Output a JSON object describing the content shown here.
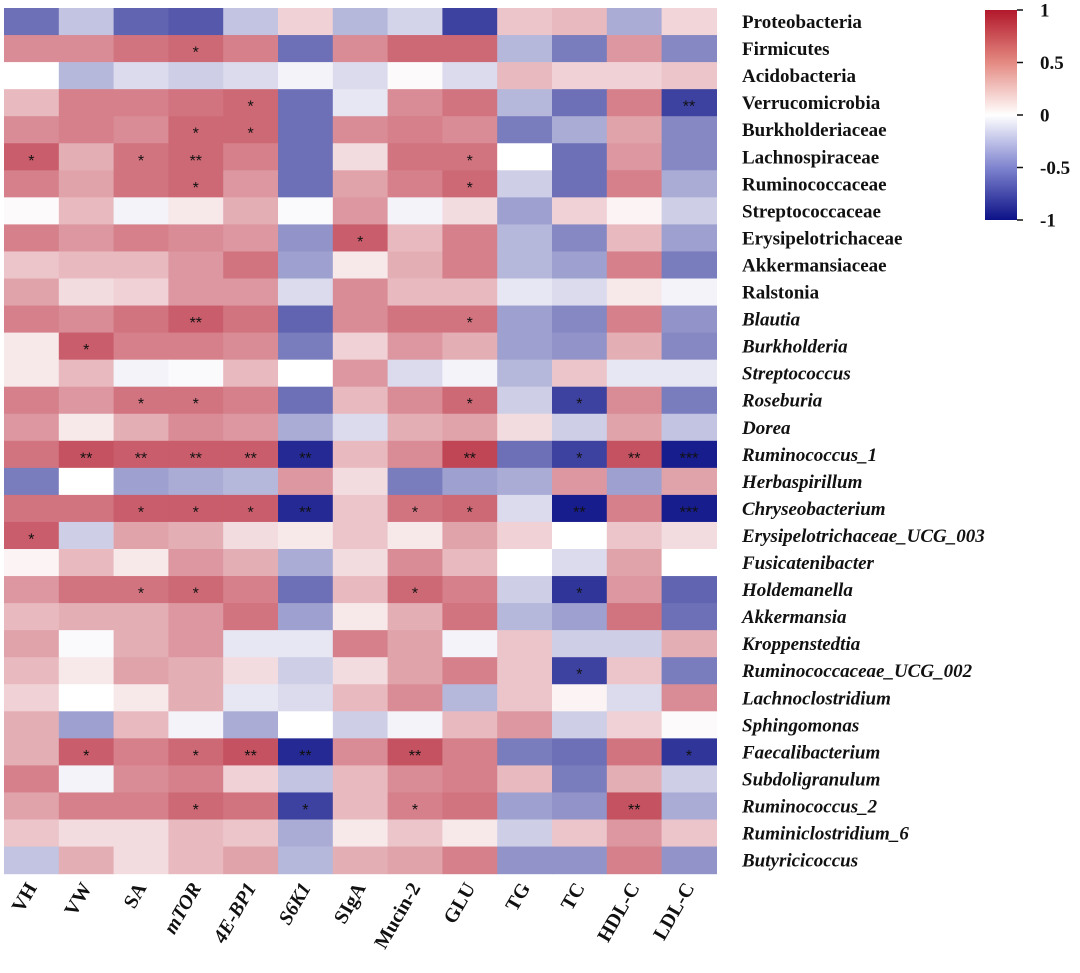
{
  "chart_data": {
    "type": "heatmap",
    "title": "",
    "columns": [
      {
        "label": "VH",
        "italic": false
      },
      {
        "label": "VW",
        "italic": false
      },
      {
        "label": "SA",
        "italic": false
      },
      {
        "label": "mTOR",
        "italic": true
      },
      {
        "label": "4E-BP1",
        "italic": true
      },
      {
        "label": "S6K1",
        "italic": true
      },
      {
        "label": "SIgA",
        "italic": false
      },
      {
        "label": "Mucin-2",
        "italic": false
      },
      {
        "label": "GLU",
        "italic": false
      },
      {
        "label": "TG",
        "italic": false
      },
      {
        "label": "TC",
        "italic": false
      },
      {
        "label": "HDL-C",
        "italic": false
      },
      {
        "label": "LDL-C",
        "italic": false
      }
    ],
    "rows": [
      {
        "label": "Proteobacteria",
        "italic": false,
        "values": [
          -0.6,
          -0.25,
          -0.65,
          -0.7,
          -0.25,
          0.2,
          -0.3,
          -0.18,
          -0.8,
          0.25,
          0.3,
          -0.35,
          0.18
        ],
        "stars": [
          "",
          "",
          "",
          "",
          "",
          "",
          "",
          "",
          "",
          "",
          "",
          "",
          ""
        ]
      },
      {
        "label": "Firmicutes",
        "italic": false,
        "values": [
          0.5,
          0.5,
          0.6,
          0.65,
          0.55,
          -0.6,
          0.5,
          0.65,
          0.65,
          -0.3,
          -0.55,
          0.45,
          -0.5
        ],
        "stars": [
          "",
          "",
          "",
          "*",
          "",
          "",
          "",
          "",
          "",
          "",
          "",
          "",
          ""
        ]
      },
      {
        "label": "Acidobacteria",
        "italic": false,
        "values": [
          0.0,
          -0.3,
          -0.15,
          -0.2,
          -0.15,
          -0.05,
          -0.15,
          0.02,
          -0.15,
          0.3,
          0.2,
          0.2,
          0.25
        ],
        "stars": [
          "",
          "",
          "",
          "",
          "",
          "",
          "",
          "",
          "",
          "",
          "",
          "",
          ""
        ]
      },
      {
        "label": "Verrucomicrobia",
        "italic": false,
        "values": [
          0.3,
          0.55,
          0.55,
          0.6,
          0.65,
          -0.6,
          -0.1,
          0.5,
          0.6,
          -0.3,
          -0.6,
          0.55,
          -0.8
        ],
        "stars": [
          "",
          "",
          "",
          "",
          "*",
          "",
          "",
          "",
          "",
          "",
          "",
          "",
          "**"
        ]
      },
      {
        "label": "Burkholderiaceae",
        "italic": false,
        "values": [
          0.5,
          0.55,
          0.5,
          0.65,
          0.65,
          -0.6,
          0.5,
          0.55,
          0.5,
          -0.55,
          -0.35,
          0.4,
          -0.5
        ],
        "stars": [
          "",
          "",
          "",
          "*",
          "*",
          "",
          "",
          "",
          "",
          "",
          "",
          "",
          ""
        ]
      },
      {
        "label": "Lachnospiraceae",
        "italic": false,
        "values": [
          0.7,
          0.35,
          0.6,
          0.65,
          0.55,
          -0.6,
          0.15,
          0.6,
          0.6,
          0.0,
          -0.6,
          0.45,
          -0.5
        ],
        "stars": [
          "*",
          "",
          "*",
          "**",
          "",
          "",
          "",
          "",
          "*",
          "",
          "",
          "",
          ""
        ]
      },
      {
        "label": "Ruminococcaceae",
        "italic": false,
        "values": [
          0.55,
          0.4,
          0.6,
          0.65,
          0.45,
          -0.6,
          0.4,
          0.55,
          0.65,
          -0.2,
          -0.6,
          0.55,
          -0.35
        ],
        "stars": [
          "",
          "",
          "",
          "*",
          "",
          "",
          "",
          "",
          "*",
          "",
          "",
          "",
          ""
        ]
      },
      {
        "label": "Streptococcaceae",
        "italic": false,
        "values": [
          0.02,
          0.3,
          -0.05,
          0.1,
          0.35,
          -0.02,
          0.45,
          -0.05,
          0.15,
          -0.4,
          0.2,
          0.05,
          -0.2
        ],
        "stars": [
          "",
          "",
          "",
          "",
          "",
          "",
          "",
          "",
          "",
          "",
          "",
          "",
          ""
        ]
      },
      {
        "label": "Erysipelotrichaceae",
        "italic": false,
        "values": [
          0.55,
          0.45,
          0.55,
          0.5,
          0.45,
          -0.45,
          0.7,
          0.3,
          0.55,
          -0.3,
          -0.5,
          0.3,
          -0.4
        ],
        "stars": [
          "",
          "",
          "",
          "",
          "",
          "",
          "*",
          "",
          "",
          "",
          "",
          "",
          ""
        ]
      },
      {
        "label": "Akkermansiaceae",
        "italic": false,
        "values": [
          0.25,
          0.3,
          0.3,
          0.45,
          0.6,
          -0.4,
          0.1,
          0.35,
          0.55,
          -0.3,
          -0.4,
          0.55,
          -0.55
        ],
        "stars": [
          "",
          "",
          "",
          "",
          "",
          "",
          "",
          "",
          "",
          "",
          "",
          "",
          ""
        ]
      },
      {
        "label": "Ralstonia",
        "italic": false,
        "values": [
          0.4,
          0.15,
          0.2,
          0.45,
          0.45,
          -0.15,
          0.5,
          0.3,
          0.3,
          -0.1,
          -0.15,
          0.1,
          -0.05
        ],
        "stars": [
          "",
          "",
          "",
          "",
          "",
          "",
          "",
          "",
          "",
          "",
          "",
          "",
          ""
        ]
      },
      {
        "label": "Blautia",
        "italic": true,
        "values": [
          0.55,
          0.5,
          0.6,
          0.7,
          0.6,
          -0.65,
          0.5,
          0.6,
          0.6,
          -0.4,
          -0.5,
          0.55,
          -0.45
        ],
        "stars": [
          "",
          "",
          "",
          "**",
          "",
          "",
          "",
          "",
          "*",
          "",
          "",
          "",
          ""
        ]
      },
      {
        "label": "Burkholderia",
        "italic": true,
        "values": [
          0.1,
          0.7,
          0.55,
          0.55,
          0.5,
          -0.55,
          0.2,
          0.45,
          0.35,
          -0.4,
          -0.45,
          0.35,
          -0.5
        ],
        "stars": [
          "",
          "*",
          "",
          "",
          "",
          "",
          "",
          "",
          "",
          "",
          "",
          "",
          ""
        ]
      },
      {
        "label": "Streptococcus",
        "italic": true,
        "values": [
          0.1,
          0.3,
          -0.05,
          -0.02,
          0.3,
          0.0,
          0.45,
          -0.15,
          -0.05,
          -0.3,
          0.25,
          -0.1,
          -0.1
        ],
        "stars": [
          "",
          "",
          "",
          "",
          "",
          "",
          "",
          "",
          "",
          "",
          "",
          "",
          ""
        ]
      },
      {
        "label": "Roseburia",
        "italic": true,
        "values": [
          0.55,
          0.45,
          0.6,
          0.6,
          0.55,
          -0.6,
          0.3,
          0.5,
          0.65,
          -0.2,
          -0.8,
          0.5,
          -0.55
        ],
        "stars": [
          "",
          "",
          "*",
          "*",
          "",
          "",
          "",
          "",
          "*",
          "",
          "*",
          "",
          ""
        ]
      },
      {
        "label": "Dorea",
        "italic": true,
        "values": [
          0.45,
          0.1,
          0.35,
          0.5,
          0.45,
          -0.35,
          -0.15,
          0.35,
          0.4,
          0.15,
          -0.2,
          0.4,
          -0.25
        ],
        "stars": [
          "",
          "",
          "",
          "",
          "",
          "",
          "",
          "",
          "",
          "",
          "",
          "",
          ""
        ]
      },
      {
        "label": "Ruminococcus_1",
        "italic": true,
        "values": [
          0.6,
          0.75,
          0.7,
          0.7,
          0.7,
          -0.9,
          0.3,
          0.5,
          0.8,
          -0.6,
          -0.8,
          0.75,
          -0.95
        ],
        "stars": [
          "",
          "**",
          "**",
          "**",
          "**",
          "**",
          "",
          "",
          "**",
          "",
          "*",
          "**",
          "***"
        ]
      },
      {
        "label": "Herbaspirillum",
        "italic": true,
        "values": [
          -0.55,
          0.0,
          -0.4,
          -0.35,
          -0.3,
          0.45,
          0.15,
          -0.55,
          -0.4,
          -0.35,
          0.45,
          -0.4,
          0.4
        ],
        "stars": [
          "",
          "",
          "",
          "",
          "",
          "",
          "",
          "",
          "",
          "",
          "",
          "",
          ""
        ]
      },
      {
        "label": "Chryseobacterium",
        "italic": true,
        "values": [
          0.6,
          0.6,
          0.7,
          0.7,
          0.7,
          -0.9,
          0.25,
          0.6,
          0.65,
          -0.15,
          -0.95,
          0.55,
          -0.95
        ],
        "stars": [
          "",
          "",
          "*",
          "*",
          "*",
          "**",
          "",
          "*",
          "*",
          "",
          "**",
          "",
          "***"
        ]
      },
      {
        "label": "Erysipelotrichaceae_UCG_003",
        "italic": true,
        "values": [
          0.7,
          -0.2,
          0.4,
          0.35,
          0.15,
          0.1,
          0.25,
          0.1,
          0.4,
          0.2,
          0.0,
          0.25,
          0.15
        ],
        "stars": [
          "*",
          "",
          "",
          "",
          "",
          "",
          "",
          "",
          "",
          "",
          "",
          "",
          ""
        ]
      },
      {
        "label": "Fusicatenibacter",
        "italic": true,
        "values": [
          0.05,
          0.3,
          0.1,
          0.45,
          0.35,
          -0.35,
          0.15,
          0.5,
          0.3,
          0.0,
          -0.15,
          0.4,
          0.0
        ],
        "stars": [
          "",
          "",
          "",
          "",
          "",
          "",
          "",
          "",
          "",
          "",
          "",
          "",
          ""
        ]
      },
      {
        "label": "Holdemanella",
        "italic": true,
        "values": [
          0.45,
          0.6,
          0.6,
          0.65,
          0.55,
          -0.6,
          0.3,
          0.65,
          0.55,
          -0.2,
          -0.85,
          0.45,
          -0.65
        ],
        "stars": [
          "",
          "",
          "*",
          "*",
          "",
          "",
          "",
          "*",
          "",
          "",
          "*",
          "",
          ""
        ]
      },
      {
        "label": "Akkermansia",
        "italic": true,
        "values": [
          0.3,
          0.35,
          0.35,
          0.45,
          0.6,
          -0.4,
          0.1,
          0.35,
          0.6,
          -0.3,
          -0.4,
          0.6,
          -0.6
        ],
        "stars": [
          "",
          "",
          "",
          "",
          "",
          "",
          "",
          "",
          "",
          "",
          "",
          "",
          ""
        ]
      },
      {
        "label": "Kroppenstedtia",
        "italic": true,
        "values": [
          0.4,
          -0.02,
          0.35,
          0.45,
          -0.1,
          -0.1,
          0.55,
          0.4,
          -0.05,
          0.25,
          -0.2,
          -0.2,
          0.35
        ],
        "stars": [
          "",
          "",
          "",
          "",
          "",
          "",
          "",
          "",
          "",
          "",
          "",
          "",
          ""
        ]
      },
      {
        "label": "Ruminococcaceae_UCG_002",
        "italic": true,
        "values": [
          0.3,
          0.1,
          0.4,
          0.35,
          0.15,
          -0.2,
          0.15,
          0.4,
          0.55,
          0.25,
          -0.8,
          0.25,
          -0.55
        ],
        "stars": [
          "",
          "",
          "",
          "",
          "",
          "",
          "",
          "",
          "",
          "",
          "*",
          "",
          ""
        ]
      },
      {
        "label": "Lachnoclostridium",
        "italic": true,
        "values": [
          0.2,
          0.0,
          0.1,
          0.35,
          -0.1,
          -0.15,
          0.3,
          0.5,
          -0.3,
          0.25,
          0.05,
          -0.15,
          0.5
        ],
        "stars": [
          "",
          "",
          "",
          "",
          "",
          "",
          "",
          "",
          "",
          "",
          "",
          "",
          ""
        ]
      },
      {
        "label": "Sphingomonas",
        "italic": true,
        "values": [
          0.35,
          -0.4,
          0.3,
          -0.05,
          -0.35,
          0.0,
          -0.2,
          -0.05,
          0.3,
          0.45,
          -0.2,
          0.2,
          0.02
        ],
        "stars": [
          "",
          "",
          "",
          "",
          "",
          "",
          "",
          "",
          "",
          "",
          "",
          "",
          ""
        ]
      },
      {
        "label": "Faecalibacterium",
        "italic": true,
        "values": [
          0.35,
          0.7,
          0.55,
          0.65,
          0.75,
          -0.9,
          0.5,
          0.75,
          0.55,
          -0.55,
          -0.6,
          0.6,
          -0.85
        ],
        "stars": [
          "",
          "*",
          "",
          "*",
          "**",
          "**",
          "",
          "**",
          "",
          "",
          "",
          "",
          "*"
        ]
      },
      {
        "label": "Subdoligranulum",
        "italic": true,
        "values": [
          0.55,
          -0.05,
          0.5,
          0.55,
          0.2,
          -0.25,
          0.3,
          0.5,
          0.55,
          0.3,
          -0.55,
          0.35,
          -0.2
        ],
        "stars": [
          "",
          "",
          "",
          "",
          "",
          "",
          "",
          "",
          "",
          "",
          "",
          "",
          ""
        ]
      },
      {
        "label": "Ruminococcus_2",
        "italic": true,
        "values": [
          0.4,
          0.55,
          0.55,
          0.65,
          0.6,
          -0.8,
          0.3,
          0.55,
          0.6,
          -0.4,
          -0.45,
          0.75,
          -0.35
        ],
        "stars": [
          "",
          "",
          "",
          "*",
          "",
          "*",
          "",
          "*",
          "",
          "",
          "",
          "**",
          ""
        ]
      },
      {
        "label": "Ruminiclostridium_6",
        "italic": true,
        "values": [
          0.25,
          0.15,
          0.15,
          0.3,
          0.25,
          -0.35,
          0.1,
          0.25,
          0.1,
          -0.2,
          0.25,
          0.45,
          0.25
        ],
        "stars": [
          "",
          "",
          "",
          "",
          "",
          "",
          "",
          "",
          "",
          "",
          "",
          "",
          ""
        ]
      },
      {
        "label": "Butyricicoccus",
        "italic": true,
        "values": [
          -0.25,
          0.35,
          0.15,
          0.3,
          0.4,
          -0.3,
          0.35,
          0.4,
          0.55,
          -0.45,
          -0.45,
          0.55,
          -0.45
        ],
        "stars": [
          "",
          "",
          "",
          "",
          "",
          "",
          "",
          "",
          "",
          "",
          "",
          "",
          ""
        ]
      }
    ],
    "colorbar": {
      "ticks": [
        "1",
        "0.5",
        "0",
        "-0.5",
        "-1"
      ],
      "tick_values": [
        1,
        0.5,
        0,
        -0.5,
        -1
      ],
      "range": [
        -1,
        1
      ],
      "colors": {
        "high": "#b2182b",
        "mid": "#ffffff",
        "low": "#0c1187"
      }
    }
  }
}
